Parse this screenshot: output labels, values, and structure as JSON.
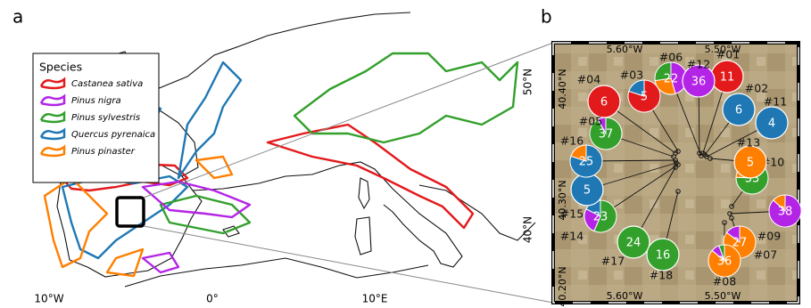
{
  "panel_labels": [
    "a",
    "b"
  ],
  "map_a": {
    "legend": {
      "title": "Species",
      "entries": [
        {
          "name": "Castanea sativa",
          "color": "#e31a1c"
        },
        {
          "name": "Pinus nigra",
          "color": "#b424e6"
        },
        {
          "name": "Pinus sylvestris",
          "color": "#33a02c"
        },
        {
          "name": "Quercus pyrenaica",
          "color": "#1f78b4"
        },
        {
          "name": "Pinus pinaster",
          "color": "#ff7f00"
        }
      ]
    },
    "lon_labels": [
      "10°W",
      "0°",
      "10°E"
    ],
    "lat_labels": [
      "50°N",
      "40°N"
    ]
  },
  "map_b": {
    "top_labels": [
      "5.60°W",
      "5.50°W"
    ],
    "bottom_labels": [
      "5.60°W",
      "5.50°W"
    ],
    "left_labels": [
      "40.40°N",
      "40.30°N",
      "40.20°N"
    ],
    "sites": [
      {
        "label": "#01",
        "n": 11,
        "slices": [
          {
            "species": 0,
            "count": 11
          }
        ]
      },
      {
        "label": "#02",
        "n": 6,
        "slices": [
          {
            "species": 3,
            "count": 6
          }
        ]
      },
      {
        "label": "#03",
        "n": 5,
        "slices": [
          {
            "species": 0,
            "count": 4
          },
          {
            "species": 3,
            "count": 1
          }
        ]
      },
      {
        "label": "#04",
        "n": 6,
        "slices": [
          {
            "species": 0,
            "count": 6
          }
        ]
      },
      {
        "label": "#05",
        "n": 37,
        "slices": [
          {
            "species": 2,
            "count": 34
          },
          {
            "species": 1,
            "count": 3
          }
        ]
      },
      {
        "label": "#06",
        "n": 22,
        "slices": [
          {
            "species": 1,
            "count": 10
          },
          {
            "species": 4,
            "count": 6
          },
          {
            "species": 2,
            "count": 6
          }
        ]
      },
      {
        "label": "#07",
        "n": 27,
        "slices": [
          {
            "species": 4,
            "count": 23
          },
          {
            "species": 1,
            "count": 4
          }
        ]
      },
      {
        "label": "#08",
        "n": 36,
        "slices": [
          {
            "species": 4,
            "count": 31
          },
          {
            "species": 1,
            "count": 3
          },
          {
            "species": 2,
            "count": 2
          }
        ]
      },
      {
        "label": "#09",
        "n": 38,
        "slices": [
          {
            "species": 1,
            "count": 33
          },
          {
            "species": 4,
            "count": 5
          }
        ]
      },
      {
        "label": "#10",
        "n": 33,
        "slices": [
          {
            "species": 2,
            "count": 25
          },
          {
            "species": 4,
            "count": 8
          }
        ]
      },
      {
        "label": "#11",
        "n": 4,
        "slices": [
          {
            "species": 3,
            "count": 4
          }
        ]
      },
      {
        "label": "#12",
        "n": 36,
        "slices": [
          {
            "species": 1,
            "count": 36
          }
        ]
      },
      {
        "label": "#13",
        "n": 5,
        "slices": [
          {
            "species": 4,
            "count": 5
          }
        ]
      },
      {
        "label": "#14",
        "n": 23,
        "slices": [
          {
            "species": 2,
            "count": 13
          },
          {
            "species": 1,
            "count": 6
          },
          {
            "species": 3,
            "count": 4
          }
        ]
      },
      {
        "label": "#15",
        "n": 5,
        "slices": [
          {
            "species": 3,
            "count": 5
          }
        ]
      },
      {
        "label": "#16",
        "n": 25,
        "slices": [
          {
            "species": 3,
            "count": 20
          },
          {
            "species": 4,
            "count": 5
          }
        ]
      },
      {
        "label": "#17",
        "n": 24,
        "slices": [
          {
            "species": 2,
            "count": 24
          }
        ]
      },
      {
        "label": "#18",
        "n": 16,
        "slices": [
          {
            "species": 2,
            "count": 16
          }
        ]
      }
    ]
  }
}
